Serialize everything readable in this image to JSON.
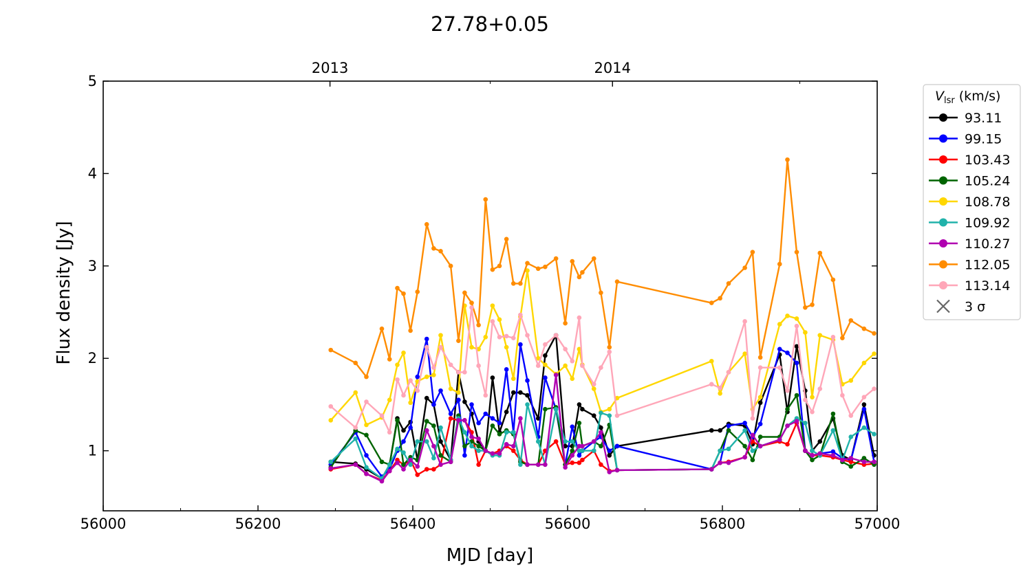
{
  "chart_data": {
    "type": "line",
    "title": "27.78+0.05",
    "xlabel": "MJD [day]",
    "ylabel": "Flux density [Jy]",
    "xlim": [
      56000,
      57000
    ],
    "ylim": [
      0.35,
      5
    ],
    "xticks": [
      56000,
      56200,
      56400,
      56600,
      56800,
      57000
    ],
    "yticks": [
      1,
      2,
      3,
      4,
      5
    ],
    "top_axis": {
      "ticks": [
        {
          "label": "2013",
          "mjd": 56293
        },
        {
          "label": "2014",
          "mjd": 56658
        }
      ]
    },
    "grid": false,
    "legend": {
      "title_main": "V",
      "title_sub": "lsr",
      "title_unit": " (km/s)",
      "placement": "right-outside",
      "sigma_label": "3 σ"
    },
    "x": [
      56294,
      56326,
      56340,
      56360,
      56370,
      56380,
      56388,
      56397,
      56406,
      56418,
      56427,
      56436,
      56449,
      56459,
      56467,
      56476,
      56485,
      56494,
      56503,
      56512,
      56521,
      56530,
      56539,
      56548,
      56562,
      56571,
      56585,
      56597,
      56606,
      56615,
      56619,
      56634,
      56643,
      56654,
      56664,
      56786,
      56797,
      56808,
      56829,
      56839,
      56849,
      56874,
      56884,
      56896,
      56907,
      56916,
      56926,
      56943,
      56955,
      56966,
      56983,
      56996
    ],
    "series": [
      {
        "name": "93.11",
        "color": "#000000",
        "values": [
          0.88,
          0.86,
          0.8,
          0.7,
          0.85,
          1.35,
          1.22,
          1.31,
          0.9,
          1.57,
          1.5,
          1.1,
          0.9,
          1.85,
          1.53,
          1.4,
          1.1,
          1.0,
          1.79,
          1.2,
          1.42,
          1.63,
          1.63,
          1.6,
          1.35,
          2.03,
          2.25,
          1.05,
          1.05,
          1.5,
          1.45,
          1.38,
          1.25,
          0.95,
          1.05,
          1.22,
          1.22,
          1.29,
          1.27,
          1.07,
          1.52,
          2.04,
          1.42,
          2.13,
          1.65,
          1.0,
          1.1,
          1.35,
          0.95,
          0.9,
          1.5,
          0.95
        ]
      },
      {
        "name": "99.15",
        "color": "#0000ff",
        "values": [
          0.85,
          1.2,
          0.95,
          0.72,
          0.8,
          1.0,
          1.1,
          1.25,
          1.8,
          2.21,
          1.5,
          1.65,
          1.4,
          1.55,
          0.95,
          1.5,
          1.3,
          1.4,
          1.35,
          1.3,
          1.88,
          1.2,
          2.15,
          1.76,
          1.15,
          1.79,
          1.45,
          0.85,
          1.26,
          0.95,
          1.0,
          1.1,
          1.15,
          1.0,
          1.05,
          0.8,
          0.87,
          1.27,
          1.3,
          1.15,
          1.29,
          2.1,
          2.06,
          1.95,
          1.0,
          0.95,
          0.97,
          0.99,
          0.92,
          0.9,
          1.45,
          0.88
        ]
      },
      {
        "name": "103.43",
        "color": "#ff0000",
        "values": [
          0.8,
          0.85,
          0.75,
          0.68,
          0.78,
          0.9,
          0.85,
          0.9,
          0.74,
          0.8,
          0.8,
          0.85,
          1.35,
          1.33,
          1.33,
          1.2,
          0.85,
          1.0,
          0.97,
          1.0,
          1.05,
          1.0,
          0.9,
          0.85,
          0.85,
          1.0,
          1.1,
          0.85,
          0.87,
          0.87,
          0.9,
          1.0,
          0.85,
          0.78,
          0.79,
          0.8,
          0.87,
          0.88,
          0.93,
          1.1,
          1.05,
          1.1,
          1.07,
          1.3,
          1.0,
          0.95,
          0.95,
          0.93,
          0.9,
          0.88,
          0.85,
          0.86
        ]
      },
      {
        "name": "105.24",
        "color": "#006400",
        "values": [
          0.82,
          1.22,
          1.17,
          0.88,
          0.85,
          1.33,
          0.85,
          0.93,
          0.9,
          1.32,
          1.27,
          0.95,
          0.88,
          1.38,
          1.05,
          1.1,
          1.05,
          1.0,
          1.27,
          1.18,
          1.22,
          1.18,
          0.88,
          0.85,
          0.85,
          1.45,
          1.47,
          0.85,
          1.0,
          1.3,
          1.05,
          1.1,
          1.05,
          1.28,
          0.79,
          0.8,
          1.0,
          1.22,
          1.05,
          0.9,
          1.15,
          1.15,
          1.45,
          1.6,
          1.0,
          0.9,
          0.95,
          1.4,
          0.88,
          0.83,
          0.92,
          0.85
        ]
      },
      {
        "name": "108.78",
        "color": "#ffd700",
        "values": [
          1.33,
          1.63,
          1.28,
          1.36,
          1.55,
          1.93,
          2.06,
          1.52,
          1.75,
          1.8,
          1.82,
          2.25,
          1.67,
          1.63,
          2.57,
          2.12,
          2.1,
          2.23,
          2.57,
          2.42,
          2.12,
          1.78,
          2.45,
          2.95,
          2.0,
          1.93,
          1.83,
          1.92,
          1.78,
          2.1,
          1.93,
          1.67,
          1.42,
          1.45,
          1.57,
          1.97,
          1.62,
          1.85,
          2.05,
          1.45,
          1.58,
          2.37,
          2.46,
          2.43,
          2.28,
          1.58,
          2.25,
          2.2,
          1.72,
          1.76,
          1.95,
          2.05
        ]
      },
      {
        "name": "109.92",
        "color": "#20b2aa",
        "values": [
          0.88,
          1.13,
          0.82,
          0.7,
          0.85,
          1.02,
          0.98,
          0.85,
          1.1,
          1.1,
          0.92,
          1.25,
          0.9,
          1.35,
          1.2,
          1.05,
          1.0,
          1.0,
          0.95,
          0.95,
          1.2,
          1.2,
          0.85,
          1.5,
          1.1,
          0.85,
          1.45,
          1.1,
          1.1,
          1.0,
          1.0,
          1.0,
          1.41,
          1.38,
          0.79,
          0.8,
          1.0,
          1.02,
          1.22,
          1.0,
          1.05,
          1.12,
          1.27,
          1.35,
          1.3,
          1.0,
          0.95,
          1.22,
          0.9,
          1.15,
          1.25,
          1.18
        ]
      },
      {
        "name": "110.27",
        "color": "#b000b0",
        "values": [
          0.81,
          0.85,
          0.75,
          0.67,
          0.78,
          0.87,
          0.8,
          0.9,
          0.83,
          1.22,
          1.05,
          0.85,
          0.88,
          1.33,
          1.33,
          1.15,
          1.13,
          1.0,
          0.97,
          0.97,
          1.07,
          1.05,
          1.35,
          0.85,
          0.85,
          0.85,
          1.82,
          0.82,
          0.95,
          1.05,
          1.05,
          1.1,
          1.2,
          0.77,
          0.79,
          0.8,
          0.87,
          0.87,
          0.93,
          1.17,
          1.05,
          1.12,
          1.27,
          1.32,
          1.0,
          0.95,
          0.97,
          0.95,
          0.9,
          0.92,
          0.88,
          0.88
        ]
      },
      {
        "name": "112.05",
        "color": "#ff8c00",
        "values": [
          2.09,
          1.95,
          1.8,
          2.32,
          1.99,
          2.76,
          2.7,
          2.3,
          2.72,
          3.45,
          3.19,
          3.16,
          3.0,
          2.19,
          2.71,
          2.6,
          2.36,
          3.72,
          2.96,
          3.0,
          3.29,
          2.81,
          2.81,
          3.03,
          2.97,
          2.99,
          3.08,
          2.38,
          3.05,
          2.88,
          2.93,
          3.08,
          2.71,
          2.12,
          2.83,
          2.6,
          2.65,
          2.81,
          2.98,
          3.15,
          2.01,
          3.02,
          4.15,
          3.15,
          2.55,
          2.58,
          3.14,
          2.85,
          2.22,
          2.41,
          2.32,
          2.27
        ]
      },
      {
        "name": "113.14",
        "color": "#ffa6b8",
        "values": [
          1.48,
          1.25,
          1.53,
          1.38,
          1.2,
          1.77,
          1.6,
          1.76,
          1.65,
          2.12,
          1.9,
          2.12,
          1.93,
          1.85,
          1.85,
          2.55,
          1.92,
          1.6,
          2.4,
          2.23,
          2.24,
          2.22,
          2.47,
          2.25,
          1.92,
          2.15,
          2.25,
          2.1,
          1.97,
          2.44,
          1.92,
          1.72,
          1.9,
          2.07,
          1.38,
          1.72,
          1.68,
          1.85,
          2.4,
          1.35,
          1.9,
          1.9,
          1.65,
          2.35,
          1.55,
          1.42,
          1.67,
          2.23,
          1.6,
          1.38,
          1.58,
          1.67
        ]
      }
    ]
  }
}
